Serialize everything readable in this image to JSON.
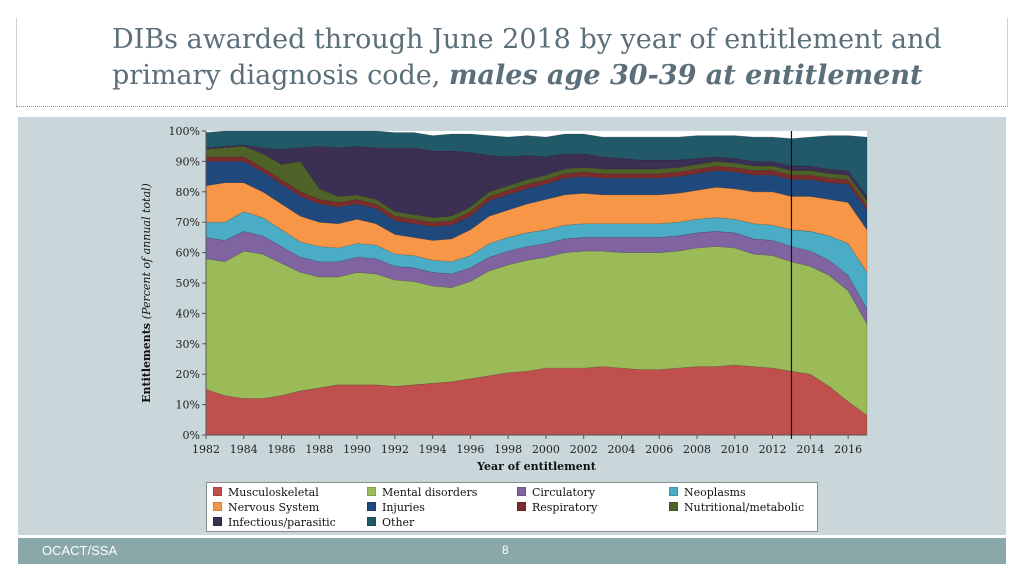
{
  "title": {
    "line1": "DIBs awarded through June 2018 by year of entitlement and",
    "line2_plain": "primary diagnosis code, ",
    "line2_emph": "males age 30-39 at entitlement"
  },
  "footer": {
    "left": "OCACT/SSA",
    "page": "8"
  },
  "colors": {
    "musculoskeletal": "#c0504d",
    "mental": "#9bbb59",
    "circulatory": "#8064a2",
    "neoplasms": "#4bacc6",
    "nervous": "#f79646",
    "injuries": "#1f497d",
    "respiratory": "#7b2c2c",
    "nutritional": "#4f6228",
    "infectious": "#3b2f53",
    "other": "#215968"
  },
  "chart_data": {
    "type": "area",
    "stacked": true,
    "title": "",
    "xlabel": "Year of entitlement",
    "ylabel_bold": "Entitlements",
    "ylabel_italic": "(Percent of annual total)",
    "ylim": [
      0,
      100
    ],
    "yticks": [
      "0%",
      "10%",
      "20%",
      "30%",
      "40%",
      "50%",
      "60%",
      "70%",
      "80%",
      "90%",
      "100%"
    ],
    "xticks": [
      "1982",
      "1984",
      "1986",
      "1988",
      "1990",
      "1992",
      "1994",
      "1996",
      "1998",
      "2000",
      "2002",
      "2004",
      "2006",
      "2008",
      "2010",
      "2012",
      "2014",
      "2016"
    ],
    "x": [
      1982,
      1983,
      1984,
      1985,
      1986,
      1987,
      1988,
      1989,
      1990,
      1991,
      1992,
      1993,
      1994,
      1995,
      1996,
      1997,
      1998,
      1999,
      2000,
      2001,
      2002,
      2003,
      2004,
      2005,
      2006,
      2007,
      2008,
      2009,
      2010,
      2011,
      2012,
      2013,
      2014,
      2015,
      2016,
      2017
    ],
    "vertical_line_x": 2013,
    "series": [
      {
        "key": "musculoskeletal",
        "name": "Musculoskeletal",
        "values": [
          15,
          13,
          12,
          12,
          13,
          14.5,
          15.5,
          16.5,
          16.5,
          16.5,
          16,
          16.5,
          17,
          17.5,
          18.5,
          19.5,
          20.5,
          21,
          22,
          22,
          22,
          22.5,
          22,
          21.5,
          21.5,
          22,
          22.5,
          22.5,
          23,
          22.5,
          22,
          21,
          20,
          16,
          11,
          6.5
        ]
      },
      {
        "key": "mental",
        "name": "Mental disorders",
        "values": [
          43,
          44,
          48.5,
          47.5,
          43.5,
          39,
          36.5,
          35.5,
          37,
          36.5,
          35,
          34,
          32,
          31,
          32,
          34.5,
          35.5,
          36.5,
          36.5,
          38,
          38.5,
          38,
          38,
          38.5,
          38.5,
          38.5,
          39,
          39.5,
          38.5,
          37,
          37,
          36,
          35.5,
          36.5,
          36.5,
          30
        ]
      },
      {
        "key": "circulatory",
        "name": "Circulatory",
        "values": [
          7,
          7,
          6.5,
          6,
          5.5,
          5,
          5,
          5,
          5,
          5,
          4.5,
          4.5,
          4.5,
          4.5,
          4.5,
          4.5,
          4.5,
          4.5,
          4.5,
          4.5,
          4.5,
          4.5,
          5,
          5,
          5,
          5,
          5,
          5,
          5,
          5,
          5,
          5,
          5,
          5,
          5,
          5
        ]
      },
      {
        "key": "neoplasms",
        "name": "Neoplasms",
        "values": [
          5,
          6,
          6.5,
          6,
          5.5,
          5,
          5,
          4.5,
          4.5,
          4.5,
          4,
          4,
          4,
          4,
          4,
          4.5,
          4.5,
          4.5,
          4.5,
          4.5,
          4.5,
          4.5,
          4.5,
          4.5,
          4.5,
          4.5,
          4.5,
          4.5,
          4.5,
          5,
          5,
          5.5,
          6.5,
          8,
          10.5,
          12
        ]
      },
      {
        "key": "nervous",
        "name": "Nervous System",
        "values": [
          12,
          13,
          9.5,
          8.5,
          8.5,
          8.5,
          8,
          8,
          8,
          7,
          6.5,
          6,
          6.5,
          7.5,
          8.5,
          9,
          9,
          9.5,
          10,
          10,
          10,
          9.5,
          9.5,
          9.5,
          9.5,
          9.5,
          9.5,
          10,
          10,
          10.5,
          11,
          11,
          11.5,
          12,
          13.5,
          14
        ]
      },
      {
        "key": "injuries",
        "name": "Injuries",
        "values": [
          8,
          7,
          7,
          6.5,
          6.5,
          6.5,
          6,
          5.5,
          5,
          5,
          4.5,
          4.5,
          4.5,
          4.5,
          4.5,
          5,
          5,
          5,
          5,
          5.5,
          5.5,
          5.5,
          5.5,
          5.5,
          5.5,
          5.5,
          5.5,
          5.5,
          5.5,
          5.5,
          5.5,
          5.5,
          5.5,
          5.5,
          6,
          6.5
        ]
      },
      {
        "key": "respiratory",
        "name": "Respiratory",
        "values": [
          1.5,
          1.5,
          1.5,
          1.5,
          1.5,
          1.5,
          1.5,
          1.5,
          1.5,
          1.5,
          1.5,
          1.5,
          1.5,
          1.5,
          1.5,
          1.5,
          1.5,
          1.5,
          1.5,
          1.5,
          1.5,
          1.5,
          1.5,
          1.5,
          1.5,
          1.5,
          1.5,
          1.5,
          1.5,
          1.5,
          1.5,
          1.5,
          1.5,
          1.5,
          1.5,
          1.5
        ]
      },
      {
        "key": "nutritional",
        "name": "Nutritional/metabolic",
        "values": [
          2.5,
          3,
          3.5,
          4.5,
          5,
          10,
          3.5,
          2,
          1.5,
          1.5,
          1.5,
          1.5,
          1.5,
          1.5,
          1.5,
          1.5,
          1.5,
          1.5,
          1.5,
          1.5,
          1.5,
          1.5,
          1.5,
          1.5,
          1.5,
          1.5,
          1.5,
          1.5,
          1.5,
          1.5,
          1.5,
          1.5,
          1.5,
          1.5,
          1.5,
          1.5
        ]
      },
      {
        "key": "infectious",
        "name": "Infectious/parasitic",
        "values": [
          0.5,
          0.5,
          0.5,
          2,
          5,
          4.5,
          14,
          16,
          16,
          17,
          21,
          22,
          22,
          21.5,
          18,
          12,
          9.5,
          8,
          6,
          5,
          4.5,
          4,
          3.5,
          3,
          3,
          2.5,
          2,
          1.5,
          1.5,
          1.5,
          1.5,
          1.5,
          1.5,
          1.5,
          1.5,
          1.5
        ]
      },
      {
        "key": "other",
        "name": "Other",
        "values": [
          5,
          5,
          4.5,
          5.5,
          6,
          5.5,
          5,
          5.5,
          5,
          5.5,
          5,
          5,
          5,
          5.5,
          6,
          6.5,
          6.5,
          6.5,
          6.5,
          6.5,
          6.5,
          6.5,
          7,
          7.5,
          7.5,
          7.5,
          7.5,
          7,
          7.5,
          8,
          8,
          9,
          9.5,
          11,
          11.5,
          19.5
        ]
      }
    ]
  },
  "legend": {
    "columns": [
      [
        "Musculoskeletal",
        "Nervous System",
        "Infectious/parasitic"
      ],
      [
        "Mental disorders",
        "Injuries",
        "Other"
      ],
      [
        "Circulatory",
        "Respiratory"
      ],
      [
        "Neoplasms",
        "Nutritional/metabolic"
      ]
    ],
    "column_keys": [
      [
        "musculoskeletal",
        "nervous",
        "infectious"
      ],
      [
        "mental",
        "injuries",
        "other"
      ],
      [
        "circulatory",
        "respiratory"
      ],
      [
        "neoplasms",
        "nutritional"
      ]
    ]
  }
}
